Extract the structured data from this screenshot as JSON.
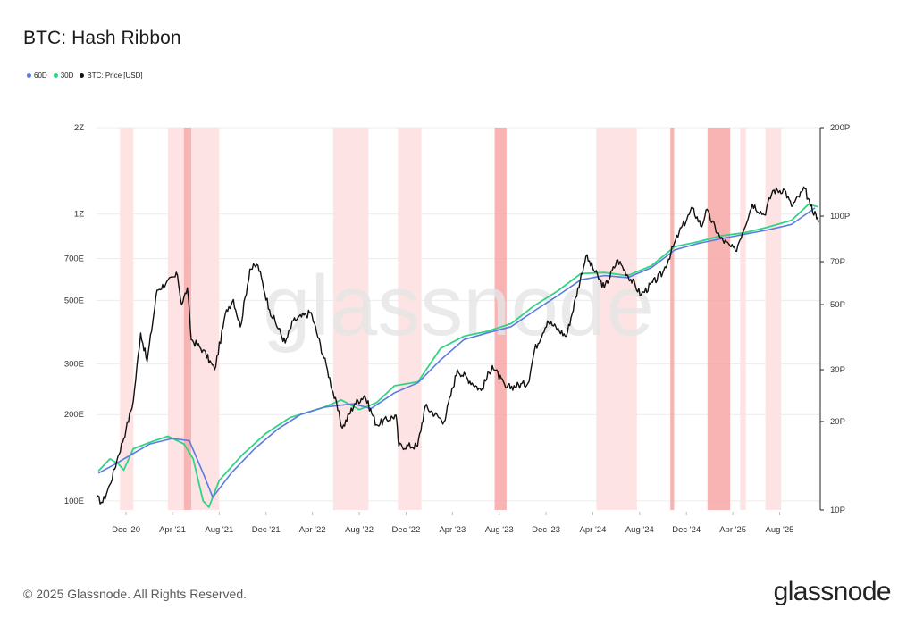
{
  "header": {
    "title": "BTC: Hash Ribbon"
  },
  "footer": {
    "copyright": "© 2025 Glassnode. All Rights Reserved.",
    "brand": "glassnode"
  },
  "watermark": "glassnode",
  "colors": {
    "ma60": "#5b7be0",
    "ma30": "#2fd485",
    "price": "#111111",
    "band_light": "#fde3e3",
    "band_dark": "#f7a6a6",
    "axis": "#222222",
    "grid": "#ececec"
  },
  "chart_data": {
    "type": "line",
    "title": "BTC: Hash Ribbon",
    "legend_position": "top-left",
    "grid": true,
    "series": [
      {
        "name": "60D",
        "key": "ma60",
        "axis": "left",
        "color": "#5b7be0"
      },
      {
        "name": "30D",
        "key": "ma30",
        "axis": "left",
        "color": "#2fd485"
      },
      {
        "name": "BTC: Price [USD]",
        "key": "price",
        "axis": "right",
        "color": "#111111"
      }
    ],
    "x_range": [
      "2020-09-15",
      "2025-11-15"
    ],
    "x_ticks": [
      {
        "date": "2020-12-01",
        "label": "Dec '20"
      },
      {
        "date": "2021-04-01",
        "label": "Apr '21"
      },
      {
        "date": "2021-08-01",
        "label": "Aug '21"
      },
      {
        "date": "2021-12-01",
        "label": "Dec '21"
      },
      {
        "date": "2022-04-01",
        "label": "Apr '22"
      },
      {
        "date": "2022-08-01",
        "label": "Aug '22"
      },
      {
        "date": "2022-12-01",
        "label": "Dec '22"
      },
      {
        "date": "2023-04-01",
        "label": "Apr '23"
      },
      {
        "date": "2023-08-01",
        "label": "Aug '23"
      },
      {
        "date": "2023-12-01",
        "label": "Dec '23"
      },
      {
        "date": "2024-04-01",
        "label": "Apr '24"
      },
      {
        "date": "2024-08-01",
        "label": "Aug '24"
      },
      {
        "date": "2024-12-01",
        "label": "Dec '24"
      },
      {
        "date": "2025-04-01",
        "label": "Apr '25"
      },
      {
        "date": "2025-08-01",
        "label": "Aug '25"
      }
    ],
    "left_axis": {
      "scale": "log",
      "range": [
        93000000000000000000,
        2000000000000000000000
      ],
      "ticks": [
        {
          "value": 100000000000000000000,
          "label": "100E"
        },
        {
          "value": 200000000000000000000,
          "label": "200E"
        },
        {
          "value": 300000000000000000000,
          "label": "300E"
        },
        {
          "value": 500000000000000000000,
          "label": "500E"
        },
        {
          "value": 700000000000000000000,
          "label": "700E"
        },
        {
          "value": 1000000000000000000000,
          "label": "1Z"
        },
        {
          "value": 2000000000000000000000,
          "label": "2Z"
        }
      ]
    },
    "right_axis": {
      "scale": "log",
      "range": [
        10000000000000000,
        200000000000000000
      ],
      "ticks": [
        {
          "value": 10000000000000000,
          "label": "10P"
        },
        {
          "value": 20000000000000000,
          "label": "20P"
        },
        {
          "value": 30000000000000000,
          "label": "30P"
        },
        {
          "value": 50000000000000000,
          "label": "50P"
        },
        {
          "value": 70000000000000000,
          "label": "70P"
        },
        {
          "value": 100000000000000000,
          "label": "100P"
        },
        {
          "value": 200000000000000000,
          "label": "200P"
        }
      ]
    },
    "capitulation_bands": [
      {
        "start": "2020-11-15",
        "end": "2020-12-20",
        "dark": false
      },
      {
        "start": "2021-03-20",
        "end": "2021-05-01",
        "dark": false
      },
      {
        "start": "2021-05-01",
        "end": "2021-05-20",
        "dark": true
      },
      {
        "start": "2021-05-20",
        "end": "2021-08-01",
        "dark": false
      },
      {
        "start": "2022-05-25",
        "end": "2022-08-25",
        "dark": false
      },
      {
        "start": "2022-11-10",
        "end": "2023-01-10",
        "dark": false
      },
      {
        "start": "2023-07-20",
        "end": "2023-08-20",
        "dark": true
      },
      {
        "start": "2024-04-10",
        "end": "2024-07-25",
        "dark": false
      },
      {
        "start": "2024-10-20",
        "end": "2024-10-30",
        "dark": true
      },
      {
        "start": "2025-01-25",
        "end": "2025-03-25",
        "dark": true
      },
      {
        "start": "2025-04-20",
        "end": "2025-05-05",
        "dark": false
      },
      {
        "start": "2025-06-25",
        "end": "2025-08-05",
        "dark": false
      }
    ],
    "ma60": [
      [
        "2020-09-20",
        125
      ],
      [
        "2020-11-01",
        134
      ],
      [
        "2020-12-15",
        145
      ],
      [
        "2021-02-01",
        158
      ],
      [
        "2021-04-01",
        165
      ],
      [
        "2021-05-15",
        162
      ],
      [
        "2021-06-20",
        125
      ],
      [
        "2021-07-15",
        103
      ],
      [
        "2021-09-01",
        125
      ],
      [
        "2021-11-01",
        152
      ],
      [
        "2022-01-01",
        178
      ],
      [
        "2022-03-01",
        200
      ],
      [
        "2022-05-01",
        212
      ],
      [
        "2022-07-15",
        218
      ],
      [
        "2022-09-01",
        210
      ],
      [
        "2022-11-01",
        238
      ],
      [
        "2023-01-01",
        258
      ],
      [
        "2023-03-01",
        310
      ],
      [
        "2023-05-01",
        365
      ],
      [
        "2023-07-01",
        385
      ],
      [
        "2023-09-01",
        405
      ],
      [
        "2023-11-01",
        460
      ],
      [
        "2024-01-01",
        520
      ],
      [
        "2024-03-01",
        590
      ],
      [
        "2024-05-01",
        610
      ],
      [
        "2024-07-01",
        600
      ],
      [
        "2024-09-01",
        650
      ],
      [
        "2024-11-01",
        750
      ],
      [
        "2025-01-01",
        790
      ],
      [
        "2025-03-01",
        820
      ],
      [
        "2025-05-01",
        850
      ],
      [
        "2025-07-01",
        880
      ],
      [
        "2025-09-01",
        920
      ],
      [
        "2025-11-01",
        1050
      ]
    ],
    "ma30": [
      [
        "2020-09-20",
        127
      ],
      [
        "2020-10-20",
        140
      ],
      [
        "2020-11-10",
        135
      ],
      [
        "2020-11-25",
        128
      ],
      [
        "2020-12-20",
        152
      ],
      [
        "2021-02-01",
        160
      ],
      [
        "2021-03-20",
        168
      ],
      [
        "2021-05-01",
        158
      ],
      [
        "2021-05-25",
        140
      ],
      [
        "2021-06-20",
        100
      ],
      [
        "2021-07-05",
        95
      ],
      [
        "2021-08-01",
        118
      ],
      [
        "2021-10-01",
        145
      ],
      [
        "2021-12-01",
        172
      ],
      [
        "2022-02-01",
        195
      ],
      [
        "2022-05-01",
        212
      ],
      [
        "2022-06-15",
        225
      ],
      [
        "2022-08-01",
        208
      ],
      [
        "2022-09-15",
        220
      ],
      [
        "2022-11-01",
        252
      ],
      [
        "2023-01-01",
        260
      ],
      [
        "2023-03-01",
        340
      ],
      [
        "2023-05-01",
        375
      ],
      [
        "2023-07-01",
        390
      ],
      [
        "2023-09-01",
        415
      ],
      [
        "2023-11-01",
        480
      ],
      [
        "2024-01-01",
        540
      ],
      [
        "2024-03-01",
        620
      ],
      [
        "2024-05-01",
        625
      ],
      [
        "2024-07-01",
        610
      ],
      [
        "2024-09-01",
        660
      ],
      [
        "2024-11-01",
        770
      ],
      [
        "2025-01-01",
        800
      ],
      [
        "2025-03-01",
        840
      ],
      [
        "2025-05-01",
        860
      ],
      [
        "2025-07-01",
        900
      ],
      [
        "2025-09-01",
        950
      ],
      [
        "2025-10-15",
        1080
      ],
      [
        "2025-11-10",
        1060
      ]
    ],
    "price": [
      [
        "2020-09-15",
        11000
      ],
      [
        "2020-10-01",
        10600
      ],
      [
        "2020-10-20",
        12200
      ],
      [
        "2020-11-10",
        15200
      ],
      [
        "2020-12-01",
        18800
      ],
      [
        "2020-12-20",
        23500
      ],
      [
        "2021-01-08",
        40000
      ],
      [
        "2021-01-25",
        32000
      ],
      [
        "2021-02-20",
        56000
      ],
      [
        "2021-03-15",
        59000
      ],
      [
        "2021-04-14",
        63000
      ],
      [
        "2021-04-25",
        50000
      ],
      [
        "2021-05-10",
        57000
      ],
      [
        "2021-05-20",
        38000
      ],
      [
        "2021-06-20",
        35000
      ],
      [
        "2021-07-20",
        30000
      ],
      [
        "2021-08-20",
        48000
      ],
      [
        "2021-09-07",
        52000
      ],
      [
        "2021-09-25",
        42000
      ],
      [
        "2021-10-20",
        66000
      ],
      [
        "2021-11-10",
        68000
      ],
      [
        "2021-12-10",
        48000
      ],
      [
        "2022-01-20",
        37000
      ],
      [
        "2022-02-10",
        44000
      ],
      [
        "2022-03-28",
        47000
      ],
      [
        "2022-05-10",
        30000
      ],
      [
        "2022-06-18",
        19000
      ],
      [
        "2022-07-20",
        23000
      ],
      [
        "2022-08-15",
        24500
      ],
      [
        "2022-09-15",
        19500
      ],
      [
        "2022-11-05",
        21000
      ],
      [
        "2022-11-12",
        16500
      ],
      [
        "2022-12-31",
        16500
      ],
      [
        "2023-01-20",
        22500
      ],
      [
        "2023-03-10",
        20000
      ],
      [
        "2023-04-14",
        30000
      ],
      [
        "2023-06-15",
        25500
      ],
      [
        "2023-07-14",
        31000
      ],
      [
        "2023-08-18",
        26000
      ],
      [
        "2023-10-15",
        27000
      ],
      [
        "2023-11-01",
        35000
      ],
      [
        "2023-12-05",
        44000
      ],
      [
        "2024-01-23",
        39000
      ],
      [
        "2024-03-14",
        73000
      ],
      [
        "2024-05-01",
        57000
      ],
      [
        "2024-06-05",
        71000
      ],
      [
        "2024-08-05",
        54000
      ],
      [
        "2024-09-30",
        64000
      ],
      [
        "2024-11-12",
        88000
      ],
      [
        "2024-12-17",
        106000
      ],
      [
        "2025-01-10",
        92000
      ],
      [
        "2025-01-21",
        105000
      ],
      [
        "2025-02-28",
        84000
      ],
      [
        "2025-04-08",
        76000
      ],
      [
        "2025-05-22",
        110000
      ],
      [
        "2025-06-22",
        101000
      ],
      [
        "2025-07-14",
        122000
      ],
      [
        "2025-08-14",
        123000
      ],
      [
        "2025-09-01",
        108000
      ],
      [
        "2025-10-06",
        124000
      ],
      [
        "2025-10-20",
        108000
      ],
      [
        "2025-11-04",
        101000
      ],
      [
        "2025-11-10",
        95000
      ]
    ]
  }
}
